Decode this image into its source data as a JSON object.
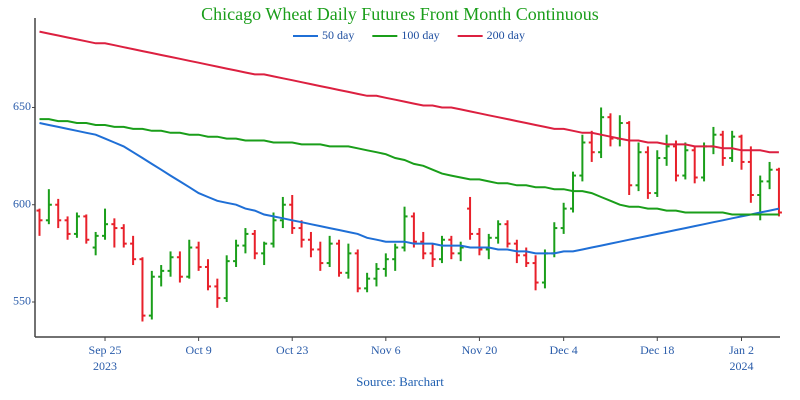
{
  "chart_data": {
    "type": "ohlc",
    "title": "Chicago Wheat Daily Futures Front Month Continuous",
    "source": "Source: Barchart",
    "x": [
      "2023-09-14",
      "2023-09-15",
      "2023-09-18",
      "2023-09-19",
      "2023-09-20",
      "2023-09-21",
      "2023-09-22",
      "2023-09-25",
      "2023-09-26",
      "2023-09-27",
      "2023-09-28",
      "2023-09-29",
      "2023-10-02",
      "2023-10-03",
      "2023-10-04",
      "2023-10-05",
      "2023-10-06",
      "2023-10-09",
      "2023-10-10",
      "2023-10-11",
      "2023-10-12",
      "2023-10-13",
      "2023-10-16",
      "2023-10-17",
      "2023-10-18",
      "2023-10-19",
      "2023-10-20",
      "2023-10-23",
      "2023-10-24",
      "2023-10-25",
      "2023-10-26",
      "2023-10-27",
      "2023-10-30",
      "2023-10-31",
      "2023-11-01",
      "2023-11-02",
      "2023-11-03",
      "2023-11-06",
      "2023-11-07",
      "2023-11-08",
      "2023-11-09",
      "2023-11-10",
      "2023-11-13",
      "2023-11-14",
      "2023-11-15",
      "2023-11-16",
      "2023-11-17",
      "2023-11-20",
      "2023-11-21",
      "2023-11-22",
      "2023-11-24",
      "2023-11-27",
      "2023-11-28",
      "2023-11-29",
      "2023-11-30",
      "2023-12-01",
      "2023-12-04",
      "2023-12-05",
      "2023-12-06",
      "2023-12-07",
      "2023-12-08",
      "2023-12-11",
      "2023-12-12",
      "2023-12-13",
      "2023-12-14",
      "2023-12-15",
      "2023-12-18",
      "2023-12-19",
      "2023-12-20",
      "2023-12-21",
      "2023-12-22",
      "2023-12-26",
      "2023-12-27",
      "2023-12-28",
      "2023-12-29",
      "2024-01-02",
      "2024-01-03",
      "2024-01-04",
      "2024-01-05",
      "2024-01-08"
    ],
    "open": [
      597,
      592,
      600,
      592,
      585,
      594,
      578,
      584,
      590,
      588,
      580,
      572,
      543,
      563,
      566,
      573,
      563,
      578,
      568,
      558,
      552,
      571,
      579,
      585,
      575,
      580,
      592,
      600,
      588,
      582,
      577,
      570,
      580,
      565,
      575,
      557,
      562,
      567,
      572,
      578,
      594,
      581,
      575,
      572,
      582,
      575,
      598,
      585,
      577,
      583,
      590,
      580,
      574,
      570,
      560,
      575,
      588,
      598,
      615,
      632,
      627,
      645,
      634,
      642,
      610,
      627,
      606,
      624,
      630,
      615,
      628,
      614,
      630,
      636,
      624,
      635,
      622,
      605,
      612,
      618
    ],
    "high": [
      598,
      608,
      603,
      594,
      596,
      595,
      586,
      598,
      593,
      590,
      584,
      573,
      566,
      569,
      576,
      576,
      582,
      581,
      572,
      562,
      574,
      582,
      588,
      587,
      581,
      596,
      604,
      605,
      592,
      586,
      581,
      584,
      582,
      580,
      577,
      565,
      570,
      575,
      580,
      599,
      596,
      586,
      580,
      584,
      584,
      581,
      604,
      588,
      585,
      592,
      592,
      582,
      578,
      574,
      577,
      591,
      601,
      617,
      636,
      638,
      650,
      647,
      646,
      643,
      632,
      630,
      628,
      636,
      633,
      632,
      630,
      632,
      640,
      638,
      638,
      636,
      630,
      615,
      622,
      619
    ],
    "low": [
      584,
      590,
      588,
      582,
      583,
      580,
      574,
      582,
      578,
      578,
      569,
      540,
      541,
      558,
      563,
      560,
      562,
      566,
      556,
      547,
      550,
      568,
      575,
      572,
      569,
      578,
      588,
      585,
      578,
      573,
      566,
      568,
      563,
      562,
      555,
      555,
      558,
      563,
      566,
      576,
      578,
      572,
      568,
      570,
      572,
      571,
      582,
      574,
      572,
      580,
      578,
      570,
      568,
      556,
      557,
      573,
      585,
      596,
      612,
      622,
      624,
      630,
      630,
      605,
      607,
      603,
      604,
      620,
      612,
      613,
      611,
      612,
      626,
      620,
      622,
      618,
      601,
      592,
      608,
      594
    ],
    "close": [
      592,
      600,
      592,
      585,
      594,
      582,
      584,
      590,
      588,
      580,
      572,
      543,
      563,
      566,
      573,
      563,
      578,
      568,
      558,
      552,
      571,
      579,
      585,
      575,
      580,
      592,
      600,
      588,
      582,
      577,
      570,
      580,
      565,
      575,
      557,
      562,
      567,
      572,
      578,
      594,
      581,
      575,
      572,
      582,
      575,
      578,
      585,
      577,
      583,
      590,
      580,
      574,
      570,
      560,
      575,
      588,
      598,
      615,
      632,
      627,
      645,
      634,
      642,
      610,
      627,
      606,
      624,
      630,
      615,
      628,
      614,
      630,
      636,
      624,
      635,
      622,
      605,
      612,
      618,
      596
    ],
    "up_color": "#1a9e1a",
    "down_color": "#e8202a",
    "series": [
      {
        "name": "50 day",
        "color": "#1f6fd6",
        "values": [
          642,
          641,
          640,
          639,
          638,
          637,
          636,
          634,
          632,
          630,
          627,
          624,
          621,
          618,
          615,
          612,
          609,
          606,
          604,
          602,
          601,
          600,
          598,
          597,
          595,
          594,
          593,
          592,
          591,
          590,
          589,
          588,
          587,
          586,
          585,
          583,
          582,
          581,
          581,
          581,
          580,
          580,
          580,
          579,
          579,
          579,
          578,
          578,
          578,
          577,
          577,
          576,
          576,
          575,
          575,
          575,
          576,
          576,
          577,
          578,
          579,
          580,
          581,
          582,
          583,
          584,
          585,
          586,
          587,
          588,
          589,
          590,
          591,
          592,
          593,
          594,
          595,
          596,
          597,
          598
        ]
      },
      {
        "name": "100 day",
        "color": "#1a9e1a",
        "values": [
          644,
          644,
          643,
          643,
          642,
          642,
          641,
          641,
          640,
          640,
          639,
          639,
          638,
          638,
          637,
          637,
          636,
          636,
          635,
          635,
          634,
          634,
          633,
          633,
          633,
          632,
          632,
          632,
          631,
          631,
          631,
          630,
          630,
          630,
          629,
          628,
          627,
          626,
          624,
          623,
          621,
          620,
          618,
          616,
          615,
          614,
          613,
          613,
          612,
          611,
          611,
          610,
          610,
          609,
          609,
          608,
          608,
          607,
          607,
          606,
          604,
          602,
          600,
          599,
          599,
          598,
          598,
          597,
          597,
          596,
          596,
          596,
          596,
          596,
          595,
          595,
          595,
          595,
          595,
          595
        ]
      },
      {
        "name": "200 day",
        "color": "#dc2040",
        "values": [
          689,
          688,
          687,
          686,
          685,
          684,
          683,
          683,
          682,
          681,
          680,
          679,
          678,
          677,
          676,
          675,
          674,
          673,
          672,
          671,
          670,
          669,
          668,
          667,
          667,
          666,
          665,
          664,
          663,
          662,
          661,
          660,
          659,
          658,
          657,
          656,
          656,
          655,
          654,
          653,
          652,
          651,
          651,
          650,
          650,
          649,
          648,
          647,
          646,
          645,
          644,
          643,
          642,
          641,
          640,
          639,
          639,
          638,
          637,
          637,
          636,
          635,
          634,
          633,
          633,
          632,
          632,
          631,
          631,
          631,
          630,
          630,
          630,
          629,
          629,
          628,
          628,
          628,
          627,
          627
        ]
      }
    ],
    "ylim": [
      532,
      696
    ],
    "yticks": [
      550,
      600,
      650
    ],
    "xticks": [
      {
        "value": "2023-09-25",
        "label": "Sep 25",
        "year": "2023"
      },
      {
        "value": "2023-10-09",
        "label": "Oct 9"
      },
      {
        "value": "2023-10-23",
        "label": "Oct 23"
      },
      {
        "value": "2023-11-06",
        "label": "Nov 6"
      },
      {
        "value": "2023-11-20",
        "label": "Nov 20"
      },
      {
        "value": "2023-12-04",
        "label": "Dec 4"
      },
      {
        "value": "2023-12-18",
        "label": "Dec 18"
      },
      {
        "value": "2024-01-02",
        "label": "Jan 2",
        "year": "2024"
      }
    ],
    "grid": false
  }
}
